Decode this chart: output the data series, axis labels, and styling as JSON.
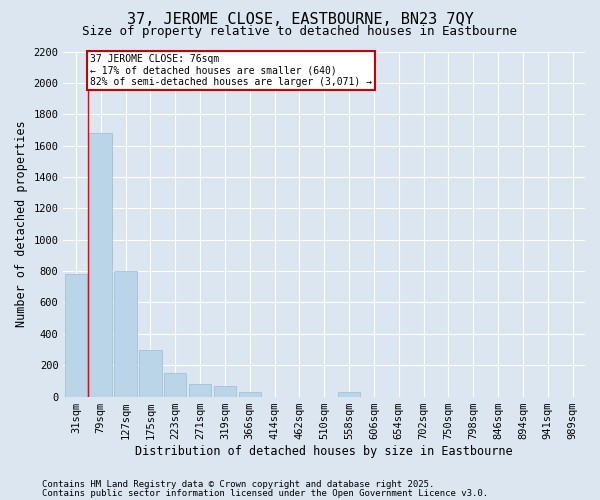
{
  "title": "37, JEROME CLOSE, EASTBOURNE, BN23 7QY",
  "subtitle": "Size of property relative to detached houses in Eastbourne",
  "xlabel": "Distribution of detached houses by size in Eastbourne",
  "ylabel": "Number of detached properties",
  "categories": [
    "31sqm",
    "79sqm",
    "127sqm",
    "175sqm",
    "223sqm",
    "271sqm",
    "319sqm",
    "366sqm",
    "414sqm",
    "462sqm",
    "510sqm",
    "558sqm",
    "606sqm",
    "654sqm",
    "702sqm",
    "750sqm",
    "798sqm",
    "846sqm",
    "894sqm",
    "941sqm",
    "989sqm"
  ],
  "values": [
    780,
    1680,
    800,
    300,
    150,
    80,
    70,
    30,
    0,
    0,
    0,
    30,
    0,
    0,
    0,
    0,
    0,
    0,
    0,
    0,
    0
  ],
  "bar_color": "#bad4e8",
  "bar_edge_color": "#9bbad4",
  "ylim": [
    0,
    2200
  ],
  "yticks": [
    0,
    200,
    400,
    600,
    800,
    1000,
    1200,
    1400,
    1600,
    1800,
    2000,
    2200
  ],
  "property_line_x": 0.5,
  "annotation_text": "37 JEROME CLOSE: 76sqm\n← 17% of detached houses are smaller (640)\n82% of semi-detached houses are larger (3,071) →",
  "annotation_box_color": "#ffffff",
  "annotation_box_edge_color": "#cc0000",
  "footer_line1": "Contains HM Land Registry data © Crown copyright and database right 2025.",
  "footer_line2": "Contains public sector information licensed under the Open Government Licence v3.0.",
  "bg_color": "#dce6f1",
  "plot_bg_color": "#dce6f1",
  "grid_color": "#ffffff",
  "title_fontsize": 11,
  "subtitle_fontsize": 9,
  "axis_label_fontsize": 8.5,
  "tick_fontsize": 7.5,
  "footer_fontsize": 6.5
}
